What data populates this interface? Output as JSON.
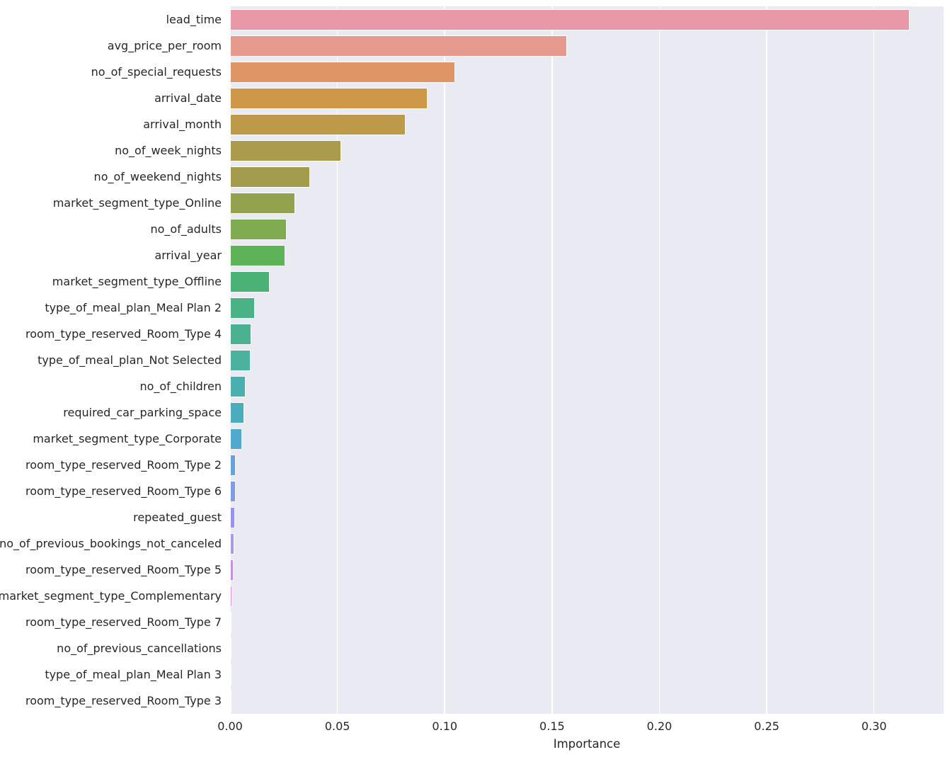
{
  "chart_data": {
    "type": "bar",
    "orientation": "horizontal",
    "title": "",
    "xlabel": "Importance",
    "ylabel": "",
    "xlim": [
      0,
      0.3324
    ],
    "xtick_values": [
      0.0,
      0.05,
      0.1,
      0.15,
      0.2,
      0.25,
      0.3
    ],
    "xtick_labels": [
      "0.00",
      "0.05",
      "0.10",
      "0.15",
      "0.20",
      "0.25",
      "0.30"
    ],
    "grid": "vertical-white",
    "legend": "none",
    "categories": [
      "lead_time",
      "avg_price_per_room",
      "no_of_special_requests",
      "arrival_date",
      "arrival_month",
      "no_of_week_nights",
      "no_of_weekend_nights",
      "market_segment_type_Online",
      "no_of_adults",
      "arrival_year",
      "market_segment_type_Offline",
      "type_of_meal_plan_Meal Plan 2",
      "room_type_reserved_Room_Type 4",
      "type_of_meal_plan_Not Selected",
      "no_of_children",
      "required_car_parking_space",
      "market_segment_type_Corporate",
      "room_type_reserved_Room_Type 2",
      "room_type_reserved_Room_Type 6",
      "repeated_guest",
      "no_of_previous_bookings_not_canceled",
      "room_type_reserved_Room_Type 5",
      "market_segment_type_Complementary",
      "room_type_reserved_Room_Type 7",
      "no_of_previous_cancellations",
      "type_of_meal_plan_Meal Plan 3",
      "room_type_reserved_Room_Type 3"
    ],
    "values": [
      0.3166,
      0.157,
      0.1048,
      0.092,
      0.0818,
      0.0517,
      0.0372,
      0.0303,
      0.0264,
      0.0256,
      0.0185,
      0.0114,
      0.0098,
      0.0094,
      0.0072,
      0.0067,
      0.0057,
      0.0028,
      0.0025,
      0.0022,
      0.002,
      0.0016,
      0.0009,
      0.0008,
      0.0004,
      0.0003,
      0.0002
    ],
    "bar_colors": [
      "#e898a6",
      "#e69a8d",
      "#e09566",
      "#cf9849",
      "#bc9a4a",
      "#ab9b4c",
      "#a39c4c",
      "#93a24e",
      "#7fab51",
      "#5db355",
      "#49b274",
      "#4ab385",
      "#4ab291",
      "#4bb2a0",
      "#4aafae",
      "#4aacbd",
      "#53a8d0",
      "#65a1de",
      "#7f9cea",
      "#9a93f1",
      "#a89aef",
      "#c48fe9",
      "#dd8ce1",
      "#ec87d5",
      "#f083bc",
      "#f184ae",
      "#f186a0"
    ],
    "colors": {
      "plot_background": "#eaeaf2",
      "figure_background": "#ffffff",
      "gridline": "#ffffff",
      "bar_edge": "#ffffff",
      "text": "#262626"
    }
  }
}
